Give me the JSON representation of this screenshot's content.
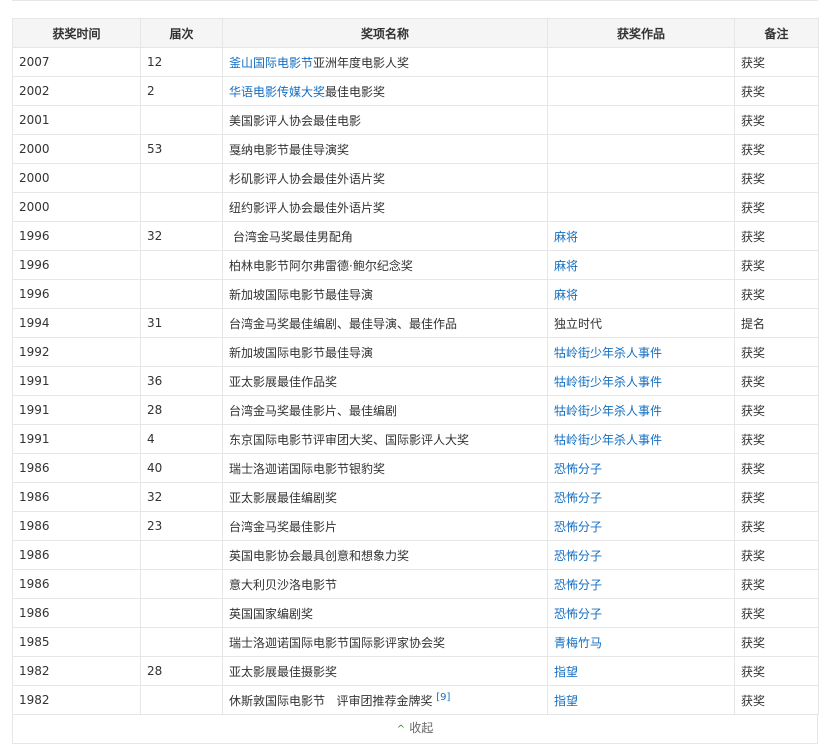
{
  "headers": [
    "获奖时间",
    "届次",
    "奖项名称",
    "获奖作品",
    "备注"
  ],
  "rows": [
    {
      "year": "2007",
      "session": "12",
      "award_link": "釜山国际电影节",
      "award": "亚洲年度电影人奖",
      "work": "",
      "work_link": false,
      "note": "获奖"
    },
    {
      "year": "2002",
      "session": "2",
      "award_link": "华语电影传媒大奖",
      "award": "最佳电影奖",
      "work": "",
      "work_link": false,
      "note": "获奖"
    },
    {
      "year": "2001",
      "session": "",
      "award_link": "",
      "award": "美国影评人协会最佳电影",
      "work": "",
      "work_link": false,
      "note": "获奖"
    },
    {
      "year": "2000",
      "session": "53",
      "award_link": "",
      "award": "戛纳电影节最佳导演奖",
      "work": "",
      "work_link": false,
      "note": "获奖"
    },
    {
      "year": "2000",
      "session": "",
      "award_link": "",
      "award": "杉矶影评人协会最佳外语片奖",
      "work": "",
      "work_link": false,
      "note": "获奖"
    },
    {
      "year": "2000",
      "session": "",
      "award_link": "",
      "award": "纽约影评人协会最佳外语片奖",
      "work": "",
      "work_link": false,
      "note": "获奖"
    },
    {
      "year": "1996",
      "session": "32",
      "award_link": "",
      "award": " 台湾金马奖最佳男配角",
      "work": "麻将",
      "work_link": true,
      "note": "获奖"
    },
    {
      "year": "1996",
      "session": "",
      "award_link": "",
      "award": "柏林电影节阿尔弗雷德·鲍尔纪念奖",
      "work": "麻将",
      "work_link": true,
      "note": "获奖"
    },
    {
      "year": "1996",
      "session": "",
      "award_link": "",
      "award": "新加坡国际电影节最佳导演",
      "work": "麻将",
      "work_link": true,
      "note": "获奖"
    },
    {
      "year": "1994",
      "session": "31",
      "award_link": "",
      "award": "台湾金马奖最佳编剧、最佳导演、最佳作品",
      "work": "独立时代",
      "work_link": false,
      "note": "提名"
    },
    {
      "year": "1992",
      "session": "",
      "award_link": "",
      "award": "新加坡国际电影节最佳导演",
      "work": "牯岭街少年杀人事件",
      "work_link": true,
      "note": "获奖"
    },
    {
      "year": "1991",
      "session": "36",
      "award_link": "",
      "award": "亚太影展最佳作品奖",
      "work": "牯岭街少年杀人事件",
      "work_link": true,
      "note": "获奖"
    },
    {
      "year": "1991",
      "session": "28",
      "award_link": "",
      "award": "台湾金马奖最佳影片、最佳编剧",
      "work": "牯岭街少年杀人事件",
      "work_link": true,
      "note": "获奖"
    },
    {
      "year": "1991",
      "session": "4",
      "award_link": "",
      "award": "东京国际电影节评审团大奖、国际影评人大奖",
      "work": "牯岭街少年杀人事件",
      "work_link": true,
      "note": "获奖"
    },
    {
      "year": "1986",
      "session": "40",
      "award_link": "",
      "award": "瑞士洛迦诺国际电影节银豹奖",
      "work": "恐怖分子",
      "work_link": true,
      "note": "获奖"
    },
    {
      "year": "1986",
      "session": "32",
      "award_link": "",
      "award": "亚太影展最佳编剧奖",
      "work": "恐怖分子",
      "work_link": true,
      "note": "获奖"
    },
    {
      "year": "1986",
      "session": "23",
      "award_link": "",
      "award": "台湾金马奖最佳影片",
      "work": "恐怖分子",
      "work_link": true,
      "note": "获奖"
    },
    {
      "year": "1986",
      "session": "",
      "award_link": "",
      "award": "英国电影协会最具创意和想象力奖",
      "work": "恐怖分子",
      "work_link": true,
      "note": "获奖"
    },
    {
      "year": "1986",
      "session": "",
      "award_link": "",
      "award": "意大利贝沙洛电影节",
      "work": "恐怖分子",
      "work_link": true,
      "note": "获奖"
    },
    {
      "year": "1986",
      "session": "",
      "award_link": "",
      "award": "英国国家编剧奖",
      "work": "恐怖分子",
      "work_link": true,
      "note": "获奖"
    },
    {
      "year": "1985",
      "session": "",
      "award_link": "",
      "award": "瑞士洛迦诺国际电影节国际影评家协会奖",
      "work": "青梅竹马",
      "work_link": true,
      "note": "获奖"
    },
    {
      "year": "1982",
      "session": "28",
      "award_link": "",
      "award": "亚太影展最佳摄影奖",
      "work": "指望",
      "work_link": true,
      "note": "获奖"
    },
    {
      "year": "1982",
      "session": "",
      "award_link": "",
      "award": "休斯敦国际电影节   评审团推荐金牌奖 ",
      "ref": "[9]",
      "work": "指望",
      "work_link": true,
      "note": "获奖"
    }
  ],
  "footer": {
    "collapse_label": "收起",
    "icon": "chevron-up-icon"
  },
  "colors": {
    "link": "#136ec2",
    "header_bg": "#f5f5f5",
    "border": "#e6e6e6"
  }
}
